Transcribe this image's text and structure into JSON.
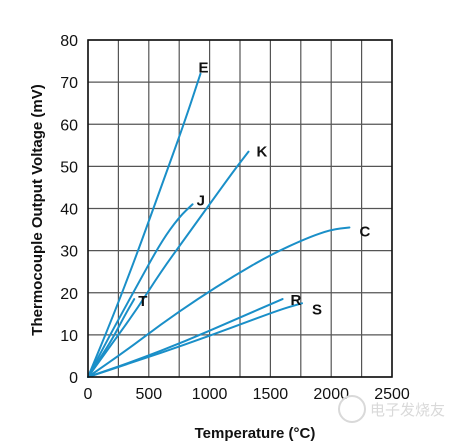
{
  "chart_data": {
    "type": "line",
    "xlabel": "Temperature (°C)",
    "ylabel": "Thermocouple Output Voltage (mV)",
    "xlim": [
      0,
      2500
    ],
    "ylim": [
      0,
      80
    ],
    "xticks": [
      0,
      500,
      1000,
      1500,
      2000,
      2500
    ],
    "yticks": [
      0,
      10,
      20,
      30,
      40,
      50,
      60,
      70,
      80
    ],
    "grid": true,
    "line_color": "#1a8fc8",
    "series": [
      {
        "name": "E",
        "x": [
          0,
          200,
          400,
          600,
          800,
          925
        ],
        "y": [
          0,
          14,
          29,
          45,
          61,
          72
        ]
      },
      {
        "name": "K",
        "x": [
          0,
          200,
          400,
          600,
          800,
          1000,
          1200,
          1320
        ],
        "y": [
          0,
          8,
          16,
          25,
          33,
          41,
          49,
          53.5
        ]
      },
      {
        "name": "J",
        "x": [
          0,
          200,
          400,
          600,
          750,
          860
        ],
        "y": [
          0,
          11,
          21.5,
          32,
          38,
          41
        ]
      },
      {
        "name": "T",
        "x": [
          0,
          100,
          200,
          300,
          380
        ],
        "y": [
          0,
          4.5,
          9,
          14.5,
          18.5
        ]
      },
      {
        "name": "C",
        "x": [
          0,
          300,
          600,
          900,
          1200,
          1500,
          1800,
          2000,
          2150
        ],
        "y": [
          0,
          6,
          12.5,
          18.5,
          24,
          29,
          33,
          35,
          35.5
        ]
      },
      {
        "name": "R",
        "x": [
          0,
          400,
          800,
          1200,
          1600
        ],
        "y": [
          0,
          4,
          8.5,
          13.5,
          18.5
        ]
      },
      {
        "name": "S",
        "x": [
          0,
          400,
          800,
          1200,
          1580,
          1760
        ],
        "y": [
          0,
          3.8,
          7.7,
          11.9,
          16,
          17.5
        ]
      }
    ]
  },
  "watermark": "电子发烧友"
}
